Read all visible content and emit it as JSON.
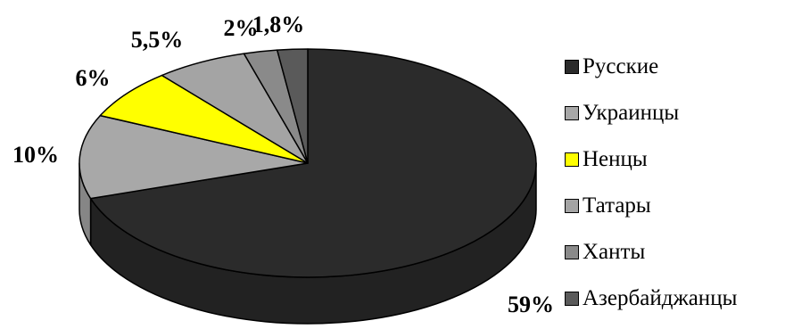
{
  "chart_data": {
    "type": "pie",
    "three_d": true,
    "legend_placement": "right",
    "slices": [
      {
        "label": "Русские",
        "value": 59,
        "value_label": "59%",
        "color": "#2b2b2b"
      },
      {
        "label": "Украинцы",
        "value": 10,
        "value_label": "10%",
        "color": "#a8a8a8"
      },
      {
        "label": "Ненцы",
        "value": 6,
        "value_label": "6%",
        "color": "#ffff00"
      },
      {
        "label": "Татары",
        "value": 5.5,
        "value_label": "5,5%",
        "color": "#a4a4a4"
      },
      {
        "label": "Ханты",
        "value": 2,
        "value_label": "2%",
        "color": "#8a8a8a"
      },
      {
        "label": "Азербайджанцы",
        "value": 1.8,
        "value_label": "1,8%",
        "color": "#5a5a5a"
      }
    ]
  }
}
